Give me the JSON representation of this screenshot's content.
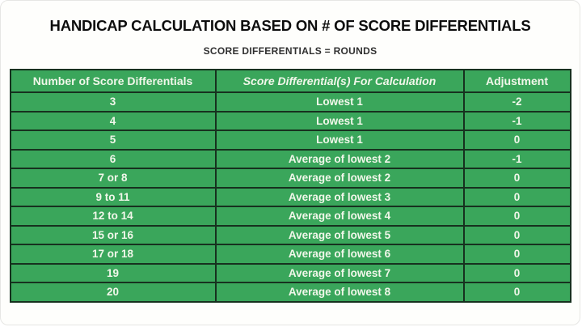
{
  "title": "HANDICAP CALCULATION BASED ON # OF SCORE DIFFERENTIALS",
  "subtitle": "SCORE DIFFERENTIALS = ROUNDS",
  "chart_data": {
    "type": "table",
    "title": "HANDICAP CALCULATION BASED ON # OF SCORE DIFFERENTIALS",
    "subtitle": "SCORE DIFFERENTIALS = ROUNDS",
    "columns": [
      "Number of Score Differentials",
      "Score Differential(s) For Calculation",
      "Adjustment"
    ],
    "rows": [
      [
        "3",
        "Lowest 1",
        "-2"
      ],
      [
        "4",
        "Lowest 1",
        "-1"
      ],
      [
        "5",
        "Lowest 1",
        "0"
      ],
      [
        "6",
        "Average of lowest 2",
        "-1"
      ],
      [
        "7 or 8",
        "Average of lowest 2",
        "0"
      ],
      [
        "9 to 11",
        "Average of lowest 3",
        "0"
      ],
      [
        "12 to 14",
        "Average of lowest 4",
        "0"
      ],
      [
        "15 or 16",
        "Average of lowest 5",
        "0"
      ],
      [
        "17 or 18",
        "Average of lowest 6",
        "0"
      ],
      [
        "19",
        "Average of lowest 7",
        "0"
      ],
      [
        "20",
        "Average of lowest 8",
        "0"
      ]
    ],
    "layout": {
      "header_style": "bold, middle column italic",
      "grid": "all cells bordered dark green",
      "alignment": "center"
    }
  },
  "colors": {
    "cell_green": "#3aa65b",
    "border_dark": "#17311f",
    "cell_text": "#f1f7ea",
    "title_text": "#0d0d0d",
    "subtitle_text": "#303030",
    "background": "#fefefc"
  }
}
